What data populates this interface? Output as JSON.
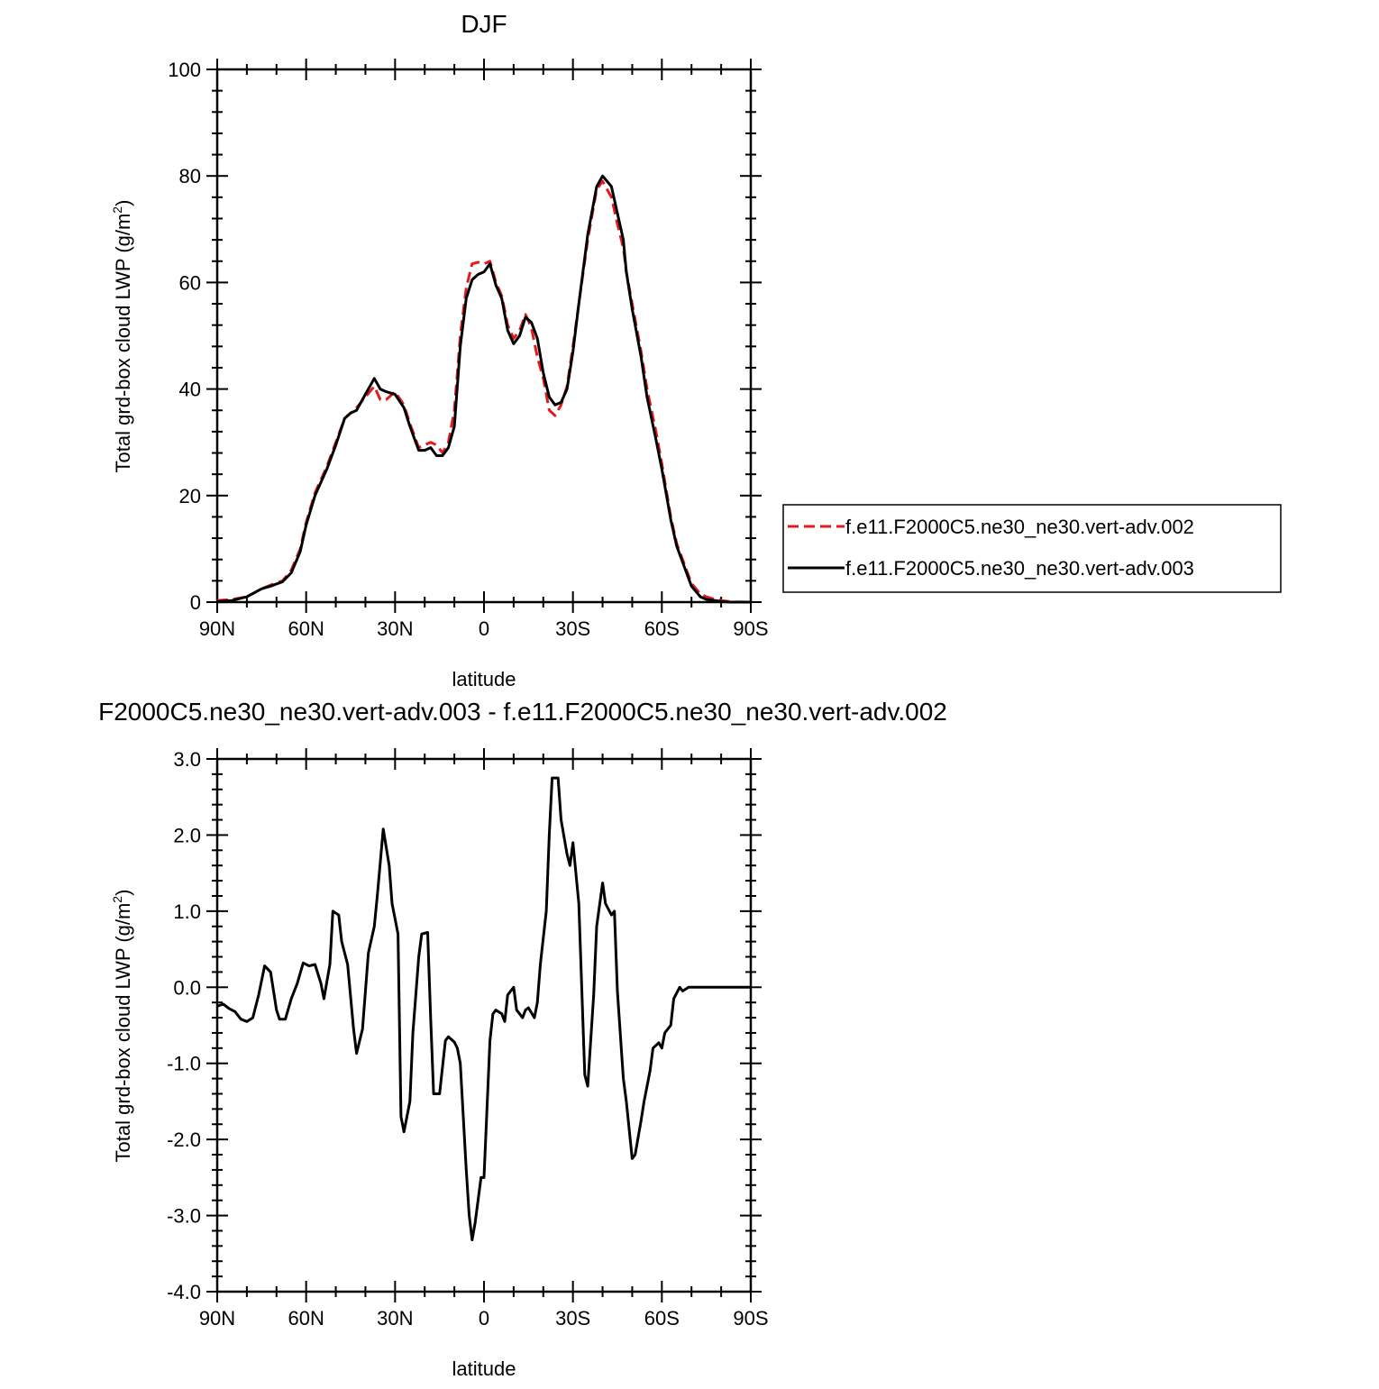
{
  "chart_data": [
    {
      "type": "line",
      "title": "DJF",
      "xlabel": "latitude",
      "ylabel": "Total grd-box cloud LWP (g/m",
      "ylabel_sup": "2",
      "ylabel_close": ")",
      "xlim": [
        90,
        -90
      ],
      "ylim": [
        0,
        100
      ],
      "x_ticks": [
        90,
        60,
        30,
        0,
        -30,
        -60,
        -90
      ],
      "x_tick_labels": [
        "90N",
        "60N",
        "30N",
        "0",
        "30S",
        "60S",
        "90S"
      ],
      "y_ticks": [
        0,
        20,
        40,
        60,
        80,
        100
      ],
      "y_tick_labels": [
        "0",
        "20",
        "40",
        "60",
        "80",
        "100"
      ],
      "legend_position": "right",
      "series": [
        {
          "name": "f.e11.F2000C5.ne30_ne30.vert-adv.002",
          "color": "#e41a1c",
          "dash": "dashed",
          "x": [
            90,
            85,
            80,
            75,
            72,
            68,
            65,
            62,
            60,
            57,
            53,
            50,
            47,
            45,
            43,
            40,
            37,
            35,
            33,
            30,
            27,
            25,
            22,
            20,
            18,
            16,
            14,
            12,
            10,
            8,
            6,
            4,
            2,
            0,
            -2,
            -4,
            -6,
            -8,
            -10,
            -12,
            -14,
            -16,
            -18,
            -20,
            -22,
            -24,
            -26,
            -28,
            -30,
            -32,
            -35,
            -38,
            -40,
            -43,
            -45,
            -47,
            -48,
            -50,
            -53,
            -55,
            -58,
            -60,
            -63,
            -65,
            -68,
            -70,
            -73,
            -75,
            -78,
            -80,
            -83,
            -85,
            -90
          ],
          "y": [
            0.3,
            0.5,
            1.0,
            2.5,
            3.2,
            4.0,
            6.0,
            10.0,
            15.0,
            20.5,
            25.5,
            30.0,
            34.5,
            35.5,
            36.5,
            38.5,
            40.5,
            38.0,
            38.0,
            39.5,
            37.0,
            33.5,
            29.0,
            29.5,
            30.0,
            29.5,
            28.0,
            30.0,
            36.0,
            50.0,
            59.0,
            63.5,
            63.8,
            63.5,
            64.0,
            60.0,
            57.5,
            52.0,
            49.5,
            51.0,
            54.0,
            51.5,
            46.0,
            42.0,
            36.0,
            35.0,
            37.0,
            40.5,
            48.0,
            56.0,
            68.0,
            77.5,
            79.0,
            76.0,
            71.0,
            66.5,
            62.0,
            56.0,
            47.0,
            40.0,
            32.0,
            26.0,
            16.0,
            11.0,
            6.5,
            3.5,
            1.5,
            1.0,
            0.5,
            0.3,
            0.1,
            0.05,
            0.0
          ]
        },
        {
          "name": "f.e11.F2000C5.ne30_ne30.vert-adv.003",
          "color": "#000000",
          "dash": "solid",
          "x": [
            90,
            85,
            80,
            75,
            72,
            68,
            65,
            62,
            60,
            57,
            53,
            50,
            47,
            45,
            43,
            40,
            37,
            35,
            33,
            30,
            27,
            25,
            22,
            20,
            18,
            16,
            14,
            12,
            10,
            8,
            6,
            4,
            2,
            0,
            -2,
            -4,
            -6,
            -8,
            -10,
            -12,
            -14,
            -16,
            -18,
            -20,
            -22,
            -24,
            -26,
            -28,
            -30,
            -32,
            -35,
            -38,
            -40,
            -43,
            -45,
            -47,
            -48,
            -50,
            -53,
            -55,
            -58,
            -60,
            -63,
            -65,
            -68,
            -70,
            -73,
            -75,
            -78,
            -80,
            -83,
            -85,
            -90
          ],
          "y": [
            0.1,
            0.3,
            1.0,
            2.5,
            3.0,
            3.8,
            5.5,
            9.5,
            14.5,
            20.0,
            25.0,
            29.5,
            34.5,
            35.5,
            36.0,
            39.0,
            42.0,
            40.0,
            39.5,
            39.0,
            36.5,
            33.0,
            28.5,
            28.5,
            29.0,
            27.5,
            27.5,
            29.0,
            33.0,
            48.0,
            57.0,
            60.5,
            61.5,
            62.0,
            63.5,
            59.5,
            57.0,
            51.0,
            48.5,
            50.0,
            53.5,
            52.5,
            49.5,
            43.0,
            38.5,
            37.0,
            37.5,
            40.0,
            47.0,
            56.0,
            69.0,
            78.0,
            80.0,
            78.0,
            73.0,
            68.0,
            62.0,
            55.0,
            46.0,
            38.5,
            30.5,
            25.0,
            15.5,
            10.5,
            6.0,
            3.0,
            1.0,
            0.5,
            0.3,
            0.1,
            0.0,
            0.0,
            0.0
          ]
        }
      ]
    },
    {
      "type": "line",
      "title": "F2000C5.ne30_ne30.vert-adv.003 - f.e11.F2000C5.ne30_ne30.vert-adv.002",
      "xlabel": "latitude",
      "ylabel": "Total grd-box cloud LWP (g/m",
      "ylabel_sup": "2",
      "ylabel_close": ")",
      "xlim": [
        90,
        -90
      ],
      "ylim": [
        -4.0,
        3.0
      ],
      "x_ticks": [
        90,
        60,
        30,
        0,
        -30,
        -60,
        -90
      ],
      "x_tick_labels": [
        "90N",
        "60N",
        "30N",
        "0",
        "30S",
        "60S",
        "90S"
      ],
      "y_ticks": [
        3.0,
        2.0,
        1.0,
        0.0,
        -1.0,
        -2.0,
        -3.0,
        -4.0
      ],
      "y_tick_labels": [
        "3.0",
        "2.0",
        "1.0",
        "0.0",
        "-1.0",
        "-2.0",
        "-3.0",
        "-4.0"
      ],
      "series": [
        {
          "color": "#000000",
          "dash": "solid",
          "x": [
            90,
            88,
            86,
            84,
            82,
            80,
            78,
            76,
            74,
            72,
            70,
            69,
            67,
            65,
            63,
            61,
            59,
            57,
            55,
            54,
            52,
            51,
            49,
            48,
            46,
            44,
            43,
            41,
            39,
            37,
            36,
            34,
            32,
            31,
            29,
            28,
            27,
            25,
            24,
            22,
            21,
            19,
            18,
            17,
            15,
            13,
            12,
            10,
            9,
            8,
            6,
            5,
            4,
            3,
            1,
            0,
            -2,
            -3,
            -4,
            -6,
            -7,
            -8,
            -10,
            -11,
            -13,
            -14,
            -15,
            -17,
            -18,
            -19,
            -21,
            -22,
            -23,
            -25,
            -26,
            -28,
            -29,
            -30,
            -32,
            -34,
            -35,
            -37,
            -38,
            -40,
            -41,
            -43,
            -44,
            -45,
            -47,
            -48,
            -50,
            -51,
            -53,
            -54,
            -56,
            -57,
            -59,
            -60,
            -61,
            -63,
            -64,
            -66,
            -67,
            -69,
            -70,
            -72,
            -73,
            -75,
            -76,
            -78,
            -79,
            -80,
            -82,
            -83,
            -85,
            -86,
            -88,
            -90
          ],
          "y": [
            -0.25,
            -0.22,
            -0.28,
            -0.32,
            -0.42,
            -0.45,
            -0.4,
            -0.1,
            0.28,
            0.2,
            -0.3,
            -0.42,
            -0.42,
            -0.15,
            0.05,
            0.32,
            0.28,
            0.3,
            0.05,
            -0.15,
            0.3,
            1.0,
            0.95,
            0.6,
            0.3,
            -0.55,
            -0.87,
            -0.55,
            0.45,
            0.8,
            1.2,
            2.08,
            1.6,
            1.1,
            0.7,
            -1.7,
            -1.9,
            -1.5,
            -0.6,
            0.4,
            0.7,
            0.72,
            -0.4,
            -1.4,
            -1.4,
            -0.7,
            -0.65,
            -0.72,
            -0.8,
            -1.0,
            -2.4,
            -3.0,
            -3.32,
            -3.1,
            -2.5,
            -2.5,
            -0.7,
            -0.35,
            -0.3,
            -0.35,
            -0.45,
            -0.1,
            0.0,
            -0.3,
            -0.4,
            -0.3,
            -0.27,
            -0.4,
            -0.2,
            0.3,
            1.0,
            2.0,
            2.75,
            2.75,
            2.2,
            1.75,
            1.6,
            1.9,
            1.1,
            -1.15,
            -1.3,
            -0.1,
            0.8,
            1.37,
            1.1,
            0.95,
            1.0,
            -0.05,
            -1.2,
            -1.5,
            -2.25,
            -2.2,
            -1.75,
            -1.5,
            -1.1,
            -0.8,
            -0.73,
            -0.8,
            -0.6,
            -0.5,
            -0.15,
            0.0,
            -0.05,
            0.0,
            0.0,
            0.0,
            0.0,
            0.0,
            0.0,
            0.0,
            0.0,
            0.0,
            0.0,
            0.0,
            0.0,
            0.0,
            0.0,
            0.0
          ]
        }
      ]
    }
  ]
}
